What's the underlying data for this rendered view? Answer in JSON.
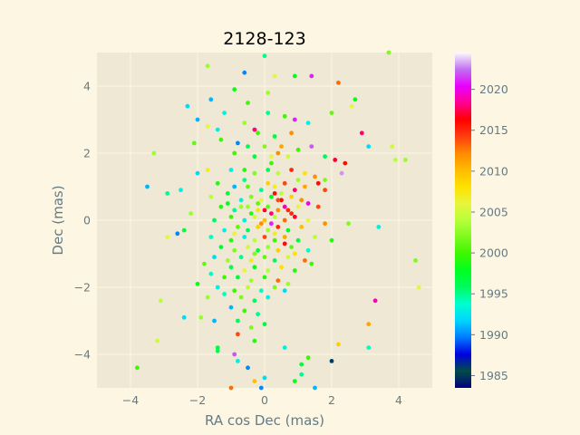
{
  "chart_data": {
    "type": "scatter",
    "title": "2128-123",
    "xlabel": "RA cos Dec (mas)",
    "ylabel": "Dec (mas)",
    "xlim": [
      -5,
      5
    ],
    "ylim": [
      -5,
      5
    ],
    "xticks": [
      -4,
      -2,
      0,
      2,
      4
    ],
    "yticks": [
      -4,
      -2,
      0,
      2,
      4
    ],
    "grid": true,
    "colorbar": {
      "label": "",
      "range": [
        1983.5,
        2024.5
      ],
      "ticks": [
        1985,
        1990,
        1995,
        2000,
        2005,
        2010,
        2015,
        2020
      ],
      "colormap": "gist_ncar"
    },
    "points": [
      [
        0.0,
        4.9,
        1995
      ],
      [
        -0.6,
        4.4,
        1990
      ],
      [
        0.3,
        4.3,
        2006
      ],
      [
        0.9,
        4.3,
        1998
      ],
      [
        1.4,
        4.3,
        2021
      ],
      [
        2.2,
        4.1,
        2013
      ],
      [
        -1.7,
        4.6,
        2003
      ],
      [
        3.7,
        5.0,
        2002
      ],
      [
        -1.6,
        3.6,
        1991
      ],
      [
        -0.9,
        3.9,
        1998
      ],
      [
        0.1,
        3.8,
        2003
      ],
      [
        -0.5,
        3.5,
        2000
      ],
      [
        2.7,
        3.6,
        1998
      ],
      [
        2.6,
        3.4,
        2006
      ],
      [
        2.0,
        3.2,
        2001
      ],
      [
        -2.3,
        3.4,
        1992
      ],
      [
        -2.0,
        3.0,
        1991
      ],
      [
        -1.2,
        3.2,
        1993
      ],
      [
        0.1,
        3.2,
        1995
      ],
      [
        0.6,
        3.1,
        2000
      ],
      [
        0.9,
        3.0,
        2021
      ],
      [
        1.3,
        2.9,
        1993
      ],
      [
        -0.6,
        2.9,
        2003
      ],
      [
        -0.3,
        2.7,
        2018
      ],
      [
        -1.4,
        2.7,
        1993
      ],
      [
        -1.7,
        2.8,
        2006
      ],
      [
        -0.2,
        2.6,
        2000
      ],
      [
        0.3,
        2.5,
        1997
      ],
      [
        0.8,
        2.6,
        2012
      ],
      [
        2.9,
        2.6,
        2018
      ],
      [
        -2.1,
        2.3,
        2001
      ],
      [
        -1.3,
        2.4,
        2000
      ],
      [
        -0.8,
        2.3,
        1990
      ],
      [
        -0.5,
        2.2,
        1996
      ],
      [
        0.0,
        2.2,
        2002
      ],
      [
        0.5,
        2.2,
        2011
      ],
      [
        1.0,
        2.1,
        2000
      ],
      [
        1.4,
        2.2,
        2022
      ],
      [
        3.1,
        2.2,
        1992
      ],
      [
        -3.3,
        2.0,
        2003
      ],
      [
        -0.9,
        2.0,
        2000
      ],
      [
        -0.3,
        1.9,
        1997
      ],
      [
        0.2,
        1.9,
        2006
      ],
      [
        0.7,
        1.9,
        2005
      ],
      [
        1.8,
        1.9,
        1996
      ],
      [
        2.1,
        1.8,
        2017
      ],
      [
        2.4,
        1.7,
        2016
      ],
      [
        3.8,
        2.2,
        2005
      ],
      [
        3.9,
        1.8,
        2004
      ],
      [
        4.2,
        1.8,
        2003
      ],
      [
        -1.7,
        1.5,
        2007
      ],
      [
        -2.0,
        1.4,
        1992
      ],
      [
        -1.0,
        1.5,
        1993
      ],
      [
        -0.6,
        1.5,
        1999
      ],
      [
        -0.3,
        1.4,
        2002
      ],
      [
        0.1,
        1.5,
        1996
      ],
      [
        0.4,
        1.4,
        2004
      ],
      [
        0.8,
        1.5,
        2015
      ],
      [
        1.2,
        1.4,
        2008
      ],
      [
        1.5,
        1.3,
        2012
      ],
      [
        1.8,
        1.2,
        2002
      ],
      [
        2.3,
        1.4,
        2023
      ],
      [
        -3.5,
        1.0,
        1991
      ],
      [
        -2.5,
        0.9,
        1993
      ],
      [
        -1.4,
        1.1,
        1999
      ],
      [
        -0.9,
        1.0,
        1991
      ],
      [
        -0.5,
        1.0,
        2001
      ],
      [
        -0.1,
        0.9,
        1995
      ],
      [
        0.3,
        1.0,
        2007
      ],
      [
        0.6,
        1.1,
        2014
      ],
      [
        0.9,
        0.9,
        2018
      ],
      [
        1.2,
        1.0,
        2011
      ],
      [
        1.6,
        1.1,
        2016
      ],
      [
        1.8,
        0.9,
        2014
      ],
      [
        -1.6,
        0.7,
        2004
      ],
      [
        -1.1,
        0.8,
        1997
      ],
      [
        -0.7,
        0.6,
        1993
      ],
      [
        -0.4,
        0.7,
        2002
      ],
      [
        -0.1,
        0.6,
        2006
      ],
      [
        0.2,
        0.7,
        1998
      ],
      [
        0.5,
        0.6,
        2016
      ],
      [
        0.8,
        0.7,
        2009
      ],
      [
        1.1,
        0.6,
        2012
      ],
      [
        1.3,
        0.5,
        2020
      ],
      [
        -2.9,
        0.8,
        1995
      ],
      [
        -1.3,
        0.4,
        1999
      ],
      [
        -0.9,
        0.3,
        1995
      ],
      [
        -0.5,
        0.4,
        2003
      ],
      [
        -0.2,
        0.3,
        2008
      ],
      [
        0.1,
        0.4,
        2001
      ],
      [
        0.4,
        0.3,
        2012
      ],
      [
        0.7,
        0.3,
        2015
      ],
      [
        1.0,
        0.4,
        2006
      ],
      [
        1.6,
        0.4,
        2014
      ],
      [
        -2.2,
        0.2,
        2003
      ],
      [
        -1.5,
        0.0,
        1996
      ],
      [
        -1.0,
        0.1,
        2000
      ],
      [
        -0.6,
        0.0,
        1993
      ],
      [
        -0.3,
        0.1,
        2005
      ],
      [
        0.0,
        0.0,
        2010
      ],
      [
        0.3,
        0.1,
        2004
      ],
      [
        0.6,
        0.0,
        2013
      ],
      [
        0.9,
        0.1,
        2017
      ],
      [
        1.3,
        0.0,
        2006
      ],
      [
        1.8,
        -0.1,
        2012
      ],
      [
        2.5,
        -0.1,
        2002
      ],
      [
        3.4,
        -0.2,
        1993
      ],
      [
        -2.4,
        -0.3,
        1997
      ],
      [
        -1.2,
        -0.3,
        1993
      ],
      [
        -0.8,
        -0.2,
        2001
      ],
      [
        -0.5,
        -0.3,
        1996
      ],
      [
        -0.2,
        -0.2,
        2009
      ],
      [
        0.1,
        -0.3,
        2003
      ],
      [
        0.4,
        -0.2,
        2015
      ],
      [
        0.7,
        -0.3,
        1998
      ],
      [
        1.1,
        -0.2,
        2010
      ],
      [
        -2.6,
        -0.4,
        1990
      ],
      [
        -1.6,
        -0.5,
        1994
      ],
      [
        -1.0,
        -0.6,
        1999
      ],
      [
        -0.6,
        -0.5,
        1993
      ],
      [
        -0.3,
        -0.6,
        2004
      ],
      [
        0.0,
        -0.5,
        2014
      ],
      [
        0.3,
        -0.6,
        2000
      ],
      [
        0.6,
        -0.5,
        2011
      ],
      [
        1.0,
        -0.6,
        1997
      ],
      [
        1.5,
        -0.5,
        2004
      ],
      [
        2.0,
        -0.6,
        1999
      ],
      [
        -2.9,
        -0.5,
        2006
      ],
      [
        -1.3,
        -0.8,
        1997
      ],
      [
        -0.9,
        -0.9,
        2002
      ],
      [
        -0.5,
        -0.8,
        2005
      ],
      [
        -0.2,
        -0.9,
        1997
      ],
      [
        0.1,
        -0.8,
        2003
      ],
      [
        0.4,
        -0.9,
        2009
      ],
      [
        0.8,
        -0.8,
        2001
      ],
      [
        1.3,
        -0.9,
        1994
      ],
      [
        -1.5,
        -1.1,
        1992
      ],
      [
        -1.1,
        -1.2,
        2003
      ],
      [
        -0.7,
        -1.1,
        1995
      ],
      [
        -0.4,
        -1.2,
        2007
      ],
      [
        0.0,
        -1.1,
        2001
      ],
      [
        0.3,
        -1.2,
        1996
      ],
      [
        0.7,
        -1.1,
        2005
      ],
      [
        1.2,
        -1.2,
        2013
      ],
      [
        4.5,
        -1.2,
        2002
      ],
      [
        -1.8,
        -1.3,
        2001
      ],
      [
        -1.0,
        -1.4,
        1996
      ],
      [
        -0.6,
        -1.5,
        2006
      ],
      [
        -0.3,
        -1.4,
        1998
      ],
      [
        0.1,
        -1.5,
        2004
      ],
      [
        0.5,
        -1.4,
        2008
      ],
      [
        0.9,
        -1.5,
        1999
      ],
      [
        1.4,
        -1.3,
        2000
      ],
      [
        -1.6,
        -1.6,
        1994
      ],
      [
        -1.2,
        -1.7,
        2000
      ],
      [
        -0.8,
        -1.7,
        1997
      ],
      [
        -0.4,
        -1.8,
        2003
      ],
      [
        0.0,
        -1.7,
        1999
      ],
      [
        0.4,
        -1.8,
        2013
      ],
      [
        0.7,
        -1.9,
        2003
      ],
      [
        -2.0,
        -1.9,
        1998
      ],
      [
        -1.4,
        -2.0,
        1993
      ],
      [
        -0.9,
        -2.1,
        2000
      ],
      [
        -0.5,
        -2.0,
        2004
      ],
      [
        -0.1,
        -2.1,
        1994
      ],
      [
        0.3,
        -2.0,
        2002
      ],
      [
        0.6,
        -2.1,
        1992
      ],
      [
        4.6,
        -2.0,
        2006
      ],
      [
        -1.7,
        -2.3,
        2003
      ],
      [
        -1.2,
        -2.2,
        1994
      ],
      [
        -0.7,
        -2.3,
        2002
      ],
      [
        -0.3,
        -2.4,
        1996
      ],
      [
        0.1,
        -2.3,
        1993
      ],
      [
        3.3,
        -2.4,
        2019
      ],
      [
        -3.1,
        -2.4,
        2004
      ],
      [
        -1.0,
        -2.6,
        1991
      ],
      [
        -0.6,
        -2.7,
        2000
      ],
      [
        -0.2,
        -2.8,
        1995
      ],
      [
        -2.4,
        -2.9,
        1992
      ],
      [
        -1.9,
        -2.9,
        2003
      ],
      [
        -1.5,
        -3.0,
        1991
      ],
      [
        -0.8,
        -3.0,
        1996
      ],
      [
        -0.4,
        -3.2,
        2002
      ],
      [
        0.0,
        -3.1,
        1997
      ],
      [
        3.1,
        -3.1,
        2011
      ],
      [
        -0.8,
        -3.4,
        2014
      ],
      [
        -0.3,
        -3.6,
        1999
      ],
      [
        -3.2,
        -3.6,
        2005
      ],
      [
        2.2,
        -3.7,
        2009
      ],
      [
        3.1,
        -3.8,
        1994
      ],
      [
        -1.4,
        -3.8,
        1997
      ],
      [
        0.6,
        -3.8,
        1993
      ],
      [
        -1.4,
        -3.9,
        1996
      ],
      [
        -0.9,
        -4.0,
        2022
      ],
      [
        2.0,
        -4.2,
        1986
      ],
      [
        -0.8,
        -4.2,
        1993
      ],
      [
        1.3,
        -4.1,
        2000
      ],
      [
        1.1,
        -4.3,
        1997
      ],
      [
        -3.8,
        -4.4,
        2000
      ],
      [
        -0.5,
        -4.4,
        1990
      ],
      [
        1.1,
        -4.6,
        1995
      ],
      [
        0.0,
        -4.7,
        1992
      ],
      [
        -0.3,
        -4.8,
        2010
      ],
      [
        0.9,
        -4.8,
        1998
      ],
      [
        -1.0,
        -5.0,
        2013
      ],
      [
        -0.1,
        -5.0,
        1990
      ],
      [
        1.5,
        -5.0,
        1991
      ],
      [
        -0.2,
        0.5,
        2001
      ],
      [
        0.2,
        0.2,
        2018
      ],
      [
        -0.1,
        -0.1,
        2012
      ],
      [
        0.5,
        0.8,
        2004
      ],
      [
        -0.4,
        0.2,
        1999
      ],
      [
        0.3,
        -0.4,
        2007
      ],
      [
        0.8,
        0.2,
        2015
      ],
      [
        -0.7,
        0.4,
        2003
      ],
      [
        0.1,
        1.1,
        2009
      ],
      [
        -0.3,
        -1.0,
        2002
      ],
      [
        0.6,
        -0.7,
        2016
      ],
      [
        1.0,
        1.2,
        2003
      ],
      [
        -0.9,
        -0.4,
        2006
      ],
      [
        0.2,
        1.7,
        2000
      ],
      [
        -0.6,
        1.2,
        1995
      ],
      [
        0.9,
        -1.0,
        2008
      ],
      [
        -1.1,
        0.5,
        1998
      ],
      [
        0.4,
        2.0,
        2012
      ],
      [
        0.0,
        0.3,
        2017
      ],
      [
        0.2,
        -0.1,
        2021
      ],
      [
        0.6,
        0.4,
        2019
      ],
      [
        0.4,
        0.6,
        2014
      ],
      [
        0.3,
        0.8,
        2016
      ]
    ]
  }
}
